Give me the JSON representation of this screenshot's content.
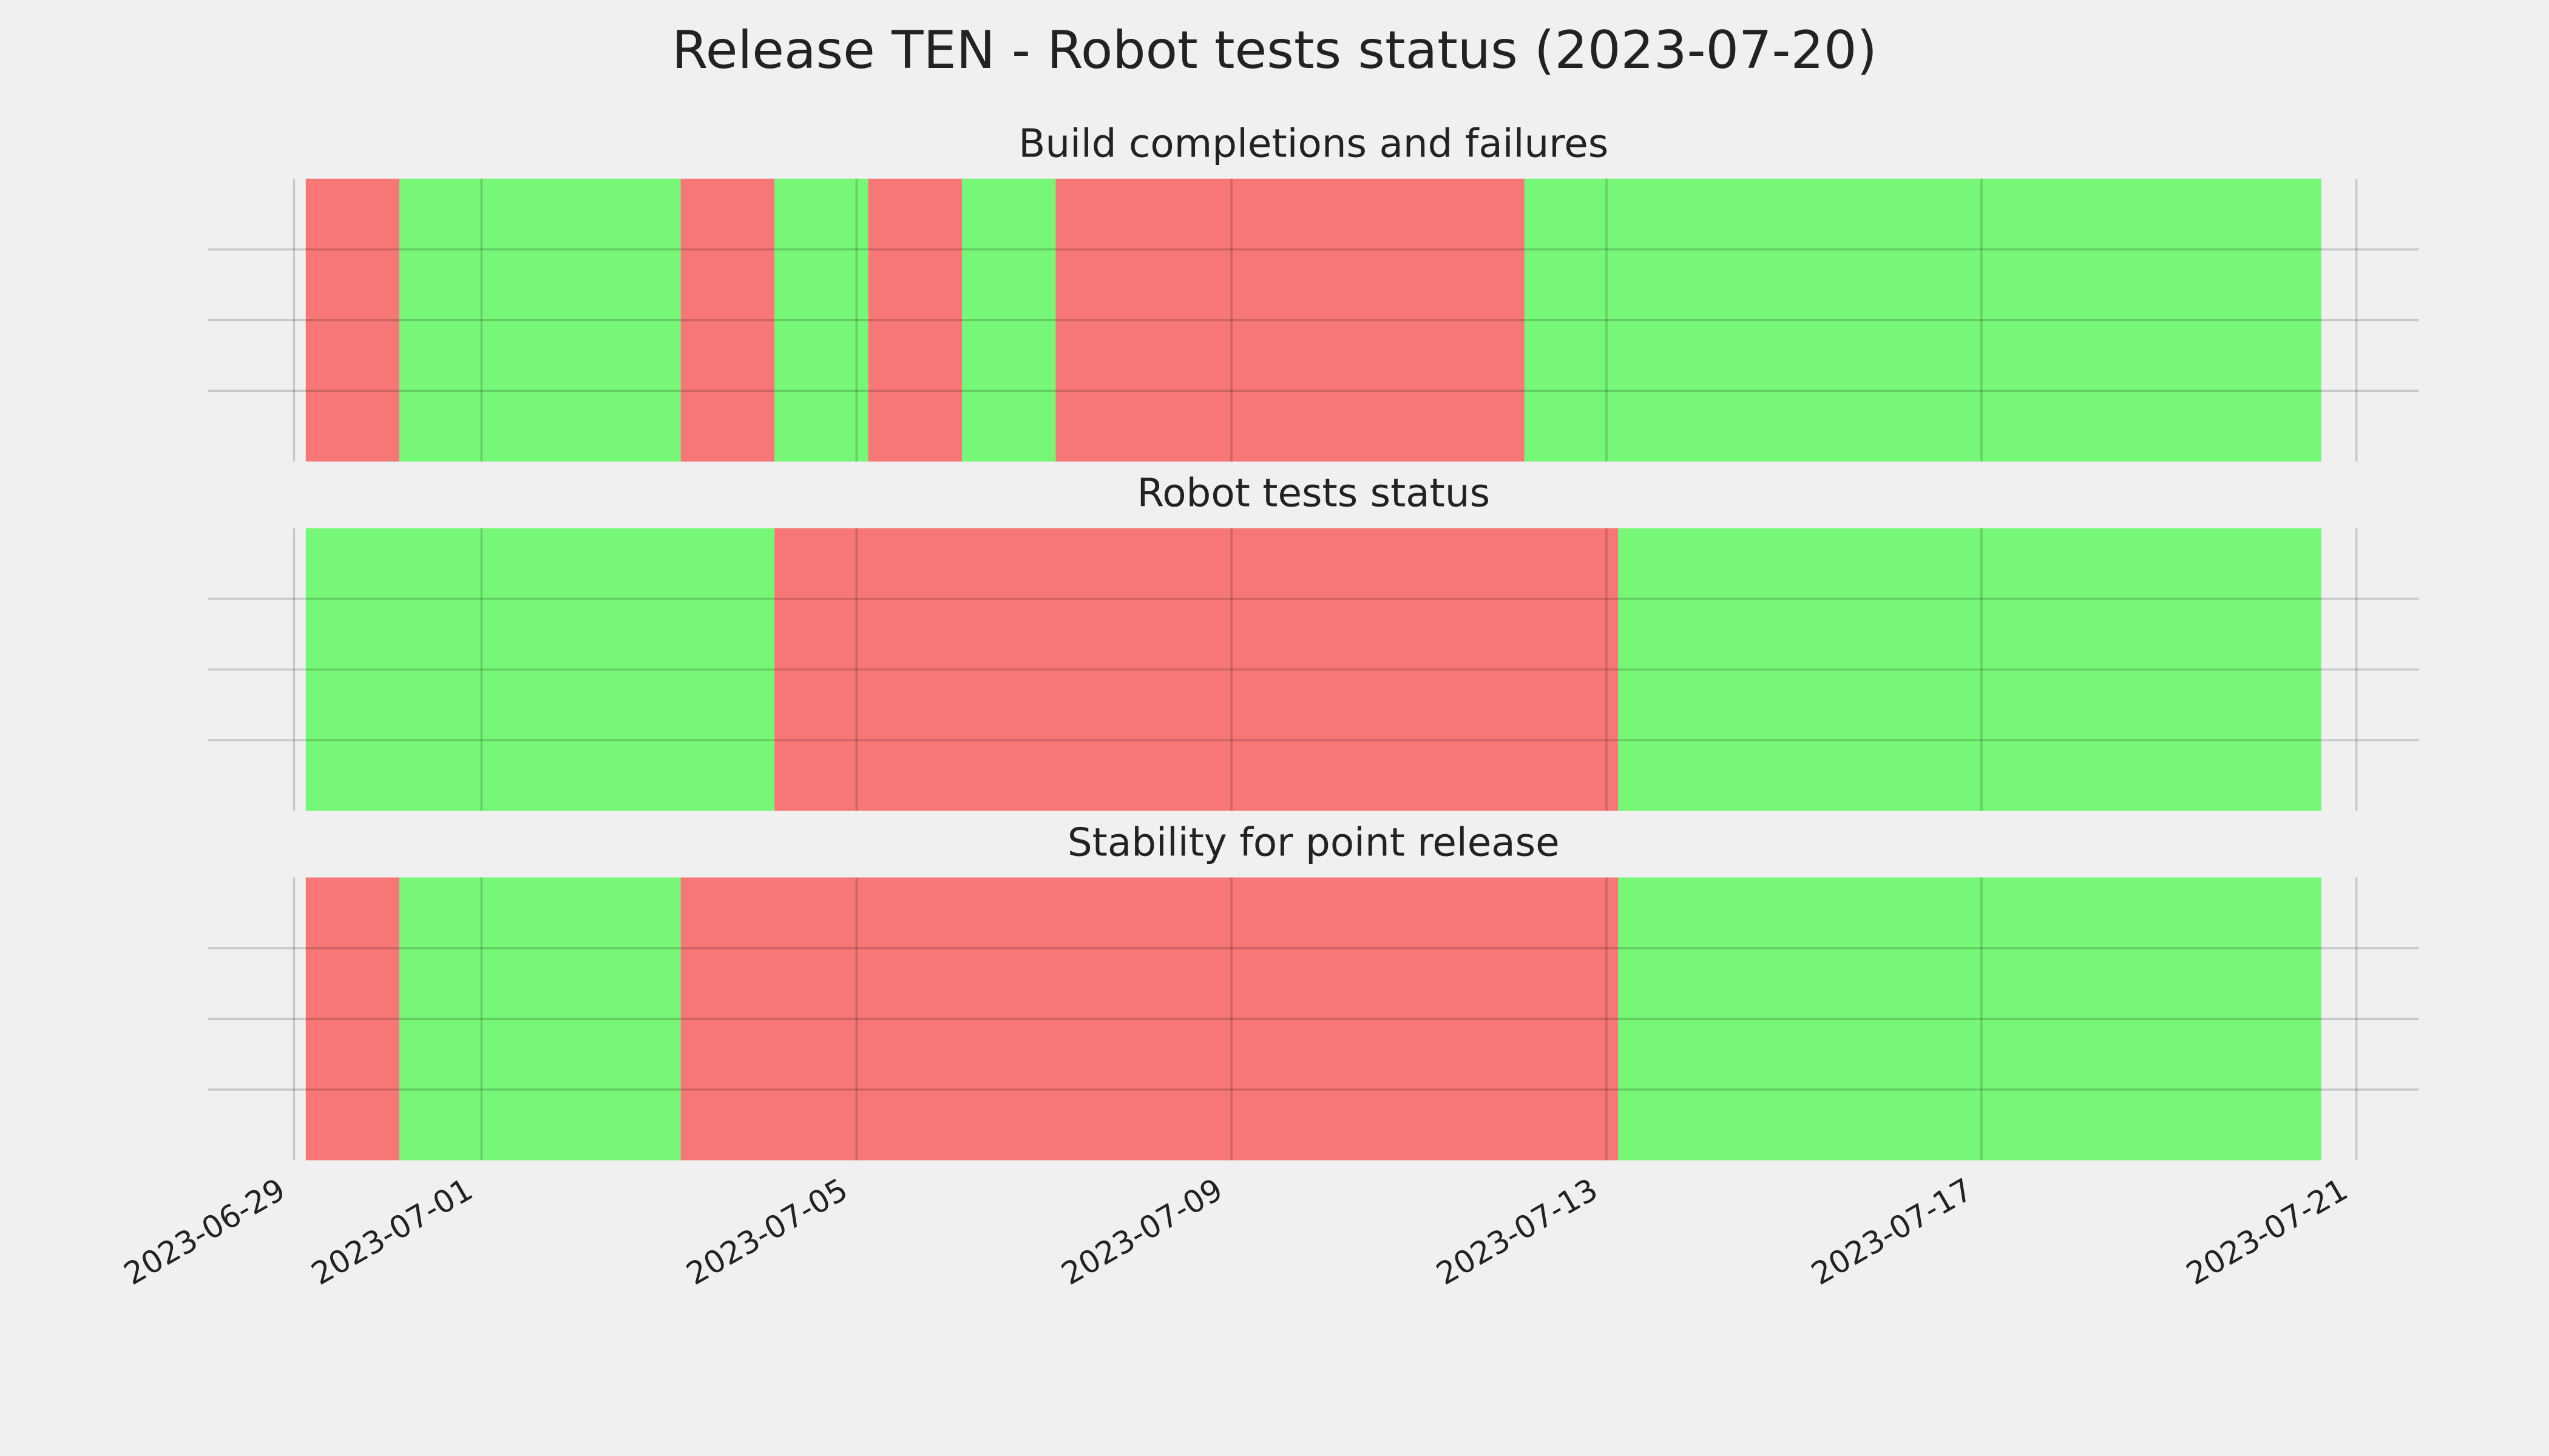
{
  "chart_data": [
    {
      "type": "timeline",
      "title": "Release TEN - Robot tests status (2023-07-20)",
      "subtitle": "Build completions and failures",
      "spans": [
        {
          "start": "2023-06-29T03:00",
          "end": "2023-06-30T03:00",
          "color": "#f77777"
        },
        {
          "start": "2023-06-30T03:00",
          "end": "2023-07-03T03:00",
          "color": "#77f777"
        },
        {
          "start": "2023-07-03T03:00",
          "end": "2023-07-04T03:00",
          "color": "#f77777"
        },
        {
          "start": "2023-07-04T03:00",
          "end": "2023-07-05T03:00",
          "color": "#77f777"
        },
        {
          "start": "2023-07-05T03:00",
          "end": "2023-07-06T03:00",
          "color": "#f77777"
        },
        {
          "start": "2023-07-06T03:00",
          "end": "2023-07-07T03:00",
          "color": "#77f777"
        },
        {
          "start": "2023-07-07T03:00",
          "end": "2023-07-12T03:00",
          "color": "#f77777"
        },
        {
          "start": "2023-07-12T03:00",
          "end": "2023-07-20T15:00",
          "color": "#77f777"
        }
      ],
      "xlim": [
        "2023-06-28T02:00",
        "2023-07-21T16:00"
      ],
      "grid": true
    },
    {
      "type": "timeline",
      "subtitle": "Robot tests status",
      "spans": [
        {
          "start": "2023-06-29T03:00",
          "end": "2023-07-04T03:00",
          "color": "#77f777"
        },
        {
          "start": "2023-07-04T03:00",
          "end": "2023-07-13T03:00",
          "color": "#f77777"
        },
        {
          "start": "2023-07-13T03:00",
          "end": "2023-07-20T15:00",
          "color": "#77f777"
        }
      ],
      "xlim": [
        "2023-06-28T02:00",
        "2023-07-21T16:00"
      ],
      "grid": true
    },
    {
      "type": "timeline",
      "subtitle": "Stability for point release",
      "spans": [
        {
          "start": "2023-06-29T03:00",
          "end": "2023-06-30T03:00",
          "color": "#f77777"
        },
        {
          "start": "2023-06-30T03:00",
          "end": "2023-07-03T03:00",
          "color": "#77f777"
        },
        {
          "start": "2023-07-03T03:00",
          "end": "2023-07-13T03:00",
          "color": "#f77777"
        },
        {
          "start": "2023-07-13T03:00",
          "end": "2023-07-20T15:00",
          "color": "#77f777"
        }
      ],
      "xlim": [
        "2023-06-28T02:00",
        "2023-07-21T16:00"
      ],
      "xticks": [
        "2023-06-29",
        "2023-07-01",
        "2023-07-05",
        "2023-07-09",
        "2023-07-13",
        "2023-07-17",
        "2023-07-21"
      ],
      "grid": true
    }
  ]
}
